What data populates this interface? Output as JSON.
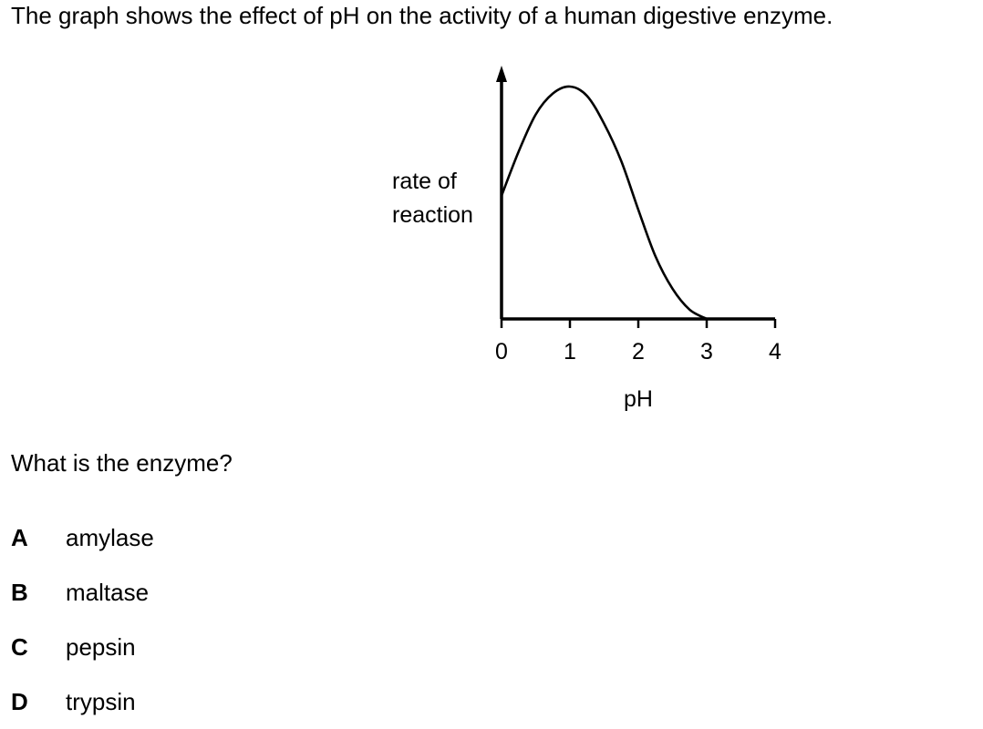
{
  "question": {
    "stem": "The graph shows the effect of pH on the activity of a human digestive enzyme.",
    "prompt": "What is the enzyme?",
    "options": [
      {
        "letter": "A",
        "text": "amylase"
      },
      {
        "letter": "B",
        "text": "maltase"
      },
      {
        "letter": "C",
        "text": "pepsin"
      },
      {
        "letter": "D",
        "text": "trypsin"
      }
    ]
  },
  "chart_data": {
    "type": "line",
    "title": "",
    "xlabel": "pH",
    "ylabel": [
      "rate of",
      "reaction"
    ],
    "xlim": [
      0,
      4
    ],
    "ylim": [
      0,
      1
    ],
    "x_ticks": [
      0,
      1,
      2,
      3,
      4
    ],
    "x_tick_labels": [
      "0",
      "1",
      "2",
      "3",
      "4"
    ],
    "y_ticks": [],
    "grid": false,
    "legend": "none",
    "colors": {
      "line": "#000000",
      "axis": "#000000"
    },
    "series": [
      {
        "x": [
          0,
          0.25,
          0.5,
          0.75,
          1.0,
          1.25,
          1.5,
          1.75,
          2.0,
          2.25,
          2.5,
          2.75,
          3.0
        ],
        "y": [
          0.53,
          0.72,
          0.88,
          0.97,
          1.0,
          0.96,
          0.84,
          0.68,
          0.47,
          0.27,
          0.13,
          0.04,
          0.0
        ]
      }
    ]
  }
}
